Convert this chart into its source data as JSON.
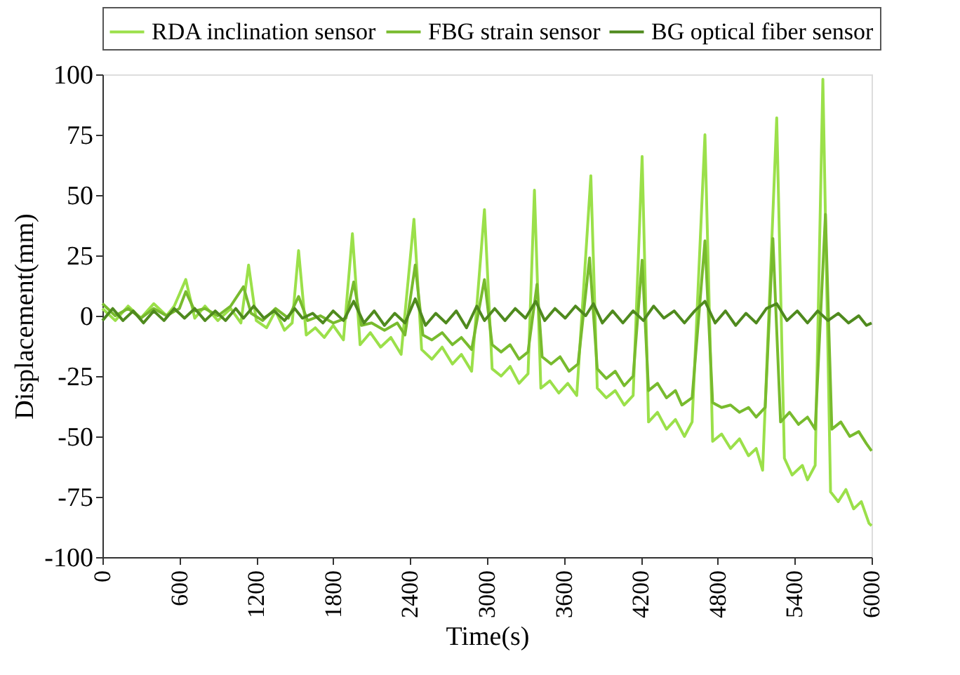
{
  "chart_data": {
    "type": "line",
    "xlabel": "Time(s)",
    "ylabel": "Displacement(mm)",
    "xlim": [
      0,
      6000
    ],
    "xticks": [
      0,
      600,
      1200,
      1800,
      2400,
      3000,
      3600,
      4200,
      4800,
      5400,
      6000
    ],
    "ylim": [
      -100,
      100
    ],
    "yticks": [
      -100,
      -75,
      -50,
      -25,
      0,
      25,
      50,
      75,
      100
    ],
    "grid": false,
    "legend": "top",
    "marker": "none",
    "line_style": "solid",
    "series": [
      {
        "name": "RDA inclination sensor",
        "color": "#9be04a",
        "x": [
          0,
          100,
          200,
          300,
          400,
          500,
          560,
          650,
          720,
          800,
          900,
          1000,
          1080,
          1140,
          1200,
          1280,
          1350,
          1420,
          1480,
          1530,
          1590,
          1660,
          1730,
          1800,
          1880,
          1950,
          2010,
          2090,
          2170,
          2250,
          2330,
          2430,
          2490,
          2570,
          2650,
          2730,
          2800,
          2880,
          2980,
          3040,
          3110,
          3180,
          3250,
          3320,
          3370,
          3420,
          3490,
          3560,
          3630,
          3700,
          3810,
          3860,
          3930,
          4000,
          4070,
          4140,
          4210,
          4260,
          4330,
          4400,
          4470,
          4540,
          4600,
          4700,
          4760,
          4830,
          4900,
          4970,
          5040,
          5100,
          5150,
          5260,
          5320,
          5380,
          5460,
          5500,
          5560,
          5620,
          5680,
          5740,
          5800,
          5860,
          5920,
          5980,
          6000
        ],
        "values": [
          3,
          -2,
          4,
          -1,
          5,
          0,
          4,
          15,
          -1,
          4,
          -2,
          3,
          -3,
          21,
          -2,
          -5,
          2,
          -6,
          -3,
          27,
          -8,
          -5,
          -9,
          -4,
          -10,
          34,
          -12,
          -7,
          -13,
          -9,
          -16,
          40,
          -14,
          -18,
          -13,
          -20,
          -16,
          -23,
          44,
          -22,
          -25,
          -21,
          -28,
          -24,
          52,
          -30,
          -27,
          -32,
          -28,
          -33,
          58,
          -30,
          -34,
          -31,
          -37,
          -33,
          66,
          -44,
          -40,
          -47,
          -43,
          -50,
          -44,
          75,
          -52,
          -49,
          -55,
          -51,
          -58,
          -55,
          -64,
          82,
          -59,
          -66,
          -62,
          -68,
          -62,
          98,
          -73,
          -77,
          -72,
          -80,
          -77,
          -86,
          -87
        ]
      },
      {
        "name": "FBG strain sensor",
        "color": "#78bb2e",
        "x": [
          0,
          100,
          200,
          300,
          400,
          500,
          600,
          650,
          720,
          800,
          900,
          1000,
          1100,
          1160,
          1250,
          1350,
          1450,
          1530,
          1600,
          1700,
          1800,
          1900,
          1960,
          2020,
          2100,
          2200,
          2300,
          2360,
          2440,
          2500,
          2570,
          2650,
          2730,
          2800,
          2880,
          2980,
          3040,
          3110,
          3180,
          3250,
          3320,
          3390,
          3430,
          3500,
          3570,
          3640,
          3710,
          3800,
          3860,
          3930,
          4000,
          4070,
          4140,
          4210,
          4260,
          4330,
          4400,
          4470,
          4520,
          4600,
          4700,
          4760,
          4830,
          4900,
          4970,
          5040,
          5100,
          5170,
          5230,
          5290,
          5360,
          5430,
          5500,
          5560,
          5640,
          5690,
          5760,
          5830,
          5900,
          5960,
          6000
        ],
        "values": [
          5,
          0,
          3,
          -1,
          3,
          0,
          3,
          10,
          2,
          3,
          0,
          4,
          12,
          1,
          -2,
          3,
          -1,
          8,
          -2,
          0,
          -3,
          -1,
          14,
          -4,
          -3,
          -6,
          -3,
          -8,
          21,
          -8,
          -10,
          -7,
          -12,
          -9,
          -14,
          15,
          -12,
          -15,
          -12,
          -18,
          -15,
          13,
          -17,
          -20,
          -17,
          -23,
          -20,
          24,
          -22,
          -26,
          -23,
          -29,
          -25,
          23,
          -31,
          -28,
          -34,
          -31,
          -37,
          -34,
          31,
          -36,
          -38,
          -37,
          -40,
          -38,
          -42,
          -38,
          32,
          -44,
          -40,
          -45,
          -42,
          -47,
          42,
          -47,
          -44,
          -50,
          -48,
          -53,
          -56
        ]
      },
      {
        "name": "BG optical fiber sensor",
        "color": "#4f8a1e",
        "x": [
          0,
          80,
          160,
          240,
          320,
          400,
          480,
          560,
          640,
          720,
          800,
          880,
          960,
          1040,
          1100,
          1180,
          1260,
          1340,
          1420,
          1500,
          1560,
          1640,
          1720,
          1800,
          1880,
          1960,
          2040,
          2120,
          2200,
          2280,
          2360,
          2440,
          2520,
          2600,
          2680,
          2760,
          2840,
          2920,
          2980,
          3060,
          3140,
          3220,
          3300,
          3380,
          3450,
          3530,
          3610,
          3690,
          3770,
          3830,
          3900,
          3980,
          4060,
          4140,
          4220,
          4300,
          4380,
          4460,
          4540,
          4620,
          4700,
          4780,
          4860,
          4940,
          5020,
          5100,
          5180,
          5260,
          5340,
          5420,
          5500,
          5580,
          5660,
          5740,
          5820,
          5900,
          5960,
          6000
        ],
        "values": [
          -2,
          3,
          -2,
          2,
          -3,
          2,
          -2,
          3,
          -1,
          3,
          -2,
          2,
          -2,
          3,
          -1,
          4,
          -1,
          2,
          -2,
          3,
          -1,
          1,
          -3,
          2,
          -2,
          6,
          -3,
          2,
          -4,
          1,
          -3,
          7,
          -4,
          1,
          -3,
          2,
          -5,
          4,
          -2,
          3,
          -2,
          3,
          -1,
          6,
          -2,
          3,
          -1,
          4,
          0,
          5,
          -3,
          2,
          -3,
          2,
          -2,
          4,
          -1,
          2,
          -3,
          2,
          6,
          -3,
          2,
          -4,
          1,
          -3,
          3,
          5,
          -2,
          2,
          -3,
          2,
          -2,
          1,
          -3,
          0,
          -4,
          -3
        ]
      }
    ]
  }
}
